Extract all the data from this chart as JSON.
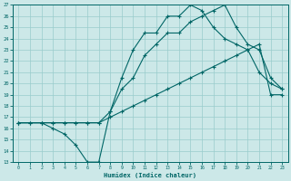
{
  "xlabel": "Humidex (Indice chaleur)",
  "xlim": [
    -0.5,
    23.5
  ],
  "ylim": [
    13,
    27
  ],
  "yticks": [
    13,
    14,
    15,
    16,
    17,
    18,
    19,
    20,
    21,
    22,
    23,
    24,
    25,
    26,
    27
  ],
  "xticks": [
    0,
    1,
    2,
    3,
    4,
    5,
    6,
    7,
    8,
    9,
    10,
    11,
    12,
    13,
    14,
    15,
    16,
    17,
    18,
    19,
    20,
    21,
    22,
    23
  ],
  "bg_color": "#cce8e8",
  "grid_color": "#99cccc",
  "line_color": "#006666",
  "line1_x": [
    0,
    1,
    2,
    3,
    4,
    5,
    6,
    7,
    8,
    9,
    10,
    11,
    12,
    13,
    14,
    15,
    16,
    17,
    18,
    19,
    20,
    21,
    22,
    23
  ],
  "line1_y": [
    16.5,
    16.5,
    16.5,
    16.5,
    16.5,
    16.5,
    16.5,
    16.5,
    17.0,
    17.5,
    18.0,
    18.5,
    19.0,
    19.5,
    20.0,
    20.5,
    21.0,
    21.5,
    22.0,
    22.5,
    23.0,
    23.5,
    19.0,
    19.0
  ],
  "line2_x": [
    0,
    2,
    3,
    4,
    5,
    6,
    7,
    8,
    9,
    10,
    11,
    12,
    13,
    14,
    15,
    16,
    17,
    18,
    19,
    20,
    21,
    22,
    23
  ],
  "line2_y": [
    16.5,
    16.5,
    16.0,
    15.5,
    14.5,
    13.0,
    13.0,
    17.5,
    20.5,
    23.0,
    24.5,
    24.5,
    26.0,
    26.0,
    27.0,
    26.5,
    25.0,
    24.0,
    23.5,
    23.0,
    21.0,
    20.0,
    19.5
  ],
  "line3_x": [
    0,
    1,
    2,
    3,
    4,
    5,
    6,
    7,
    8,
    9,
    10,
    11,
    12,
    13,
    14,
    15,
    16,
    17,
    18,
    19,
    20,
    21,
    22,
    23
  ],
  "line3_y": [
    16.5,
    16.5,
    16.5,
    16.5,
    16.5,
    16.5,
    16.5,
    16.5,
    17.5,
    19.5,
    20.5,
    22.5,
    23.5,
    24.5,
    24.5,
    25.5,
    26.0,
    26.5,
    27.0,
    25.0,
    23.5,
    23.0,
    20.5,
    19.5
  ]
}
